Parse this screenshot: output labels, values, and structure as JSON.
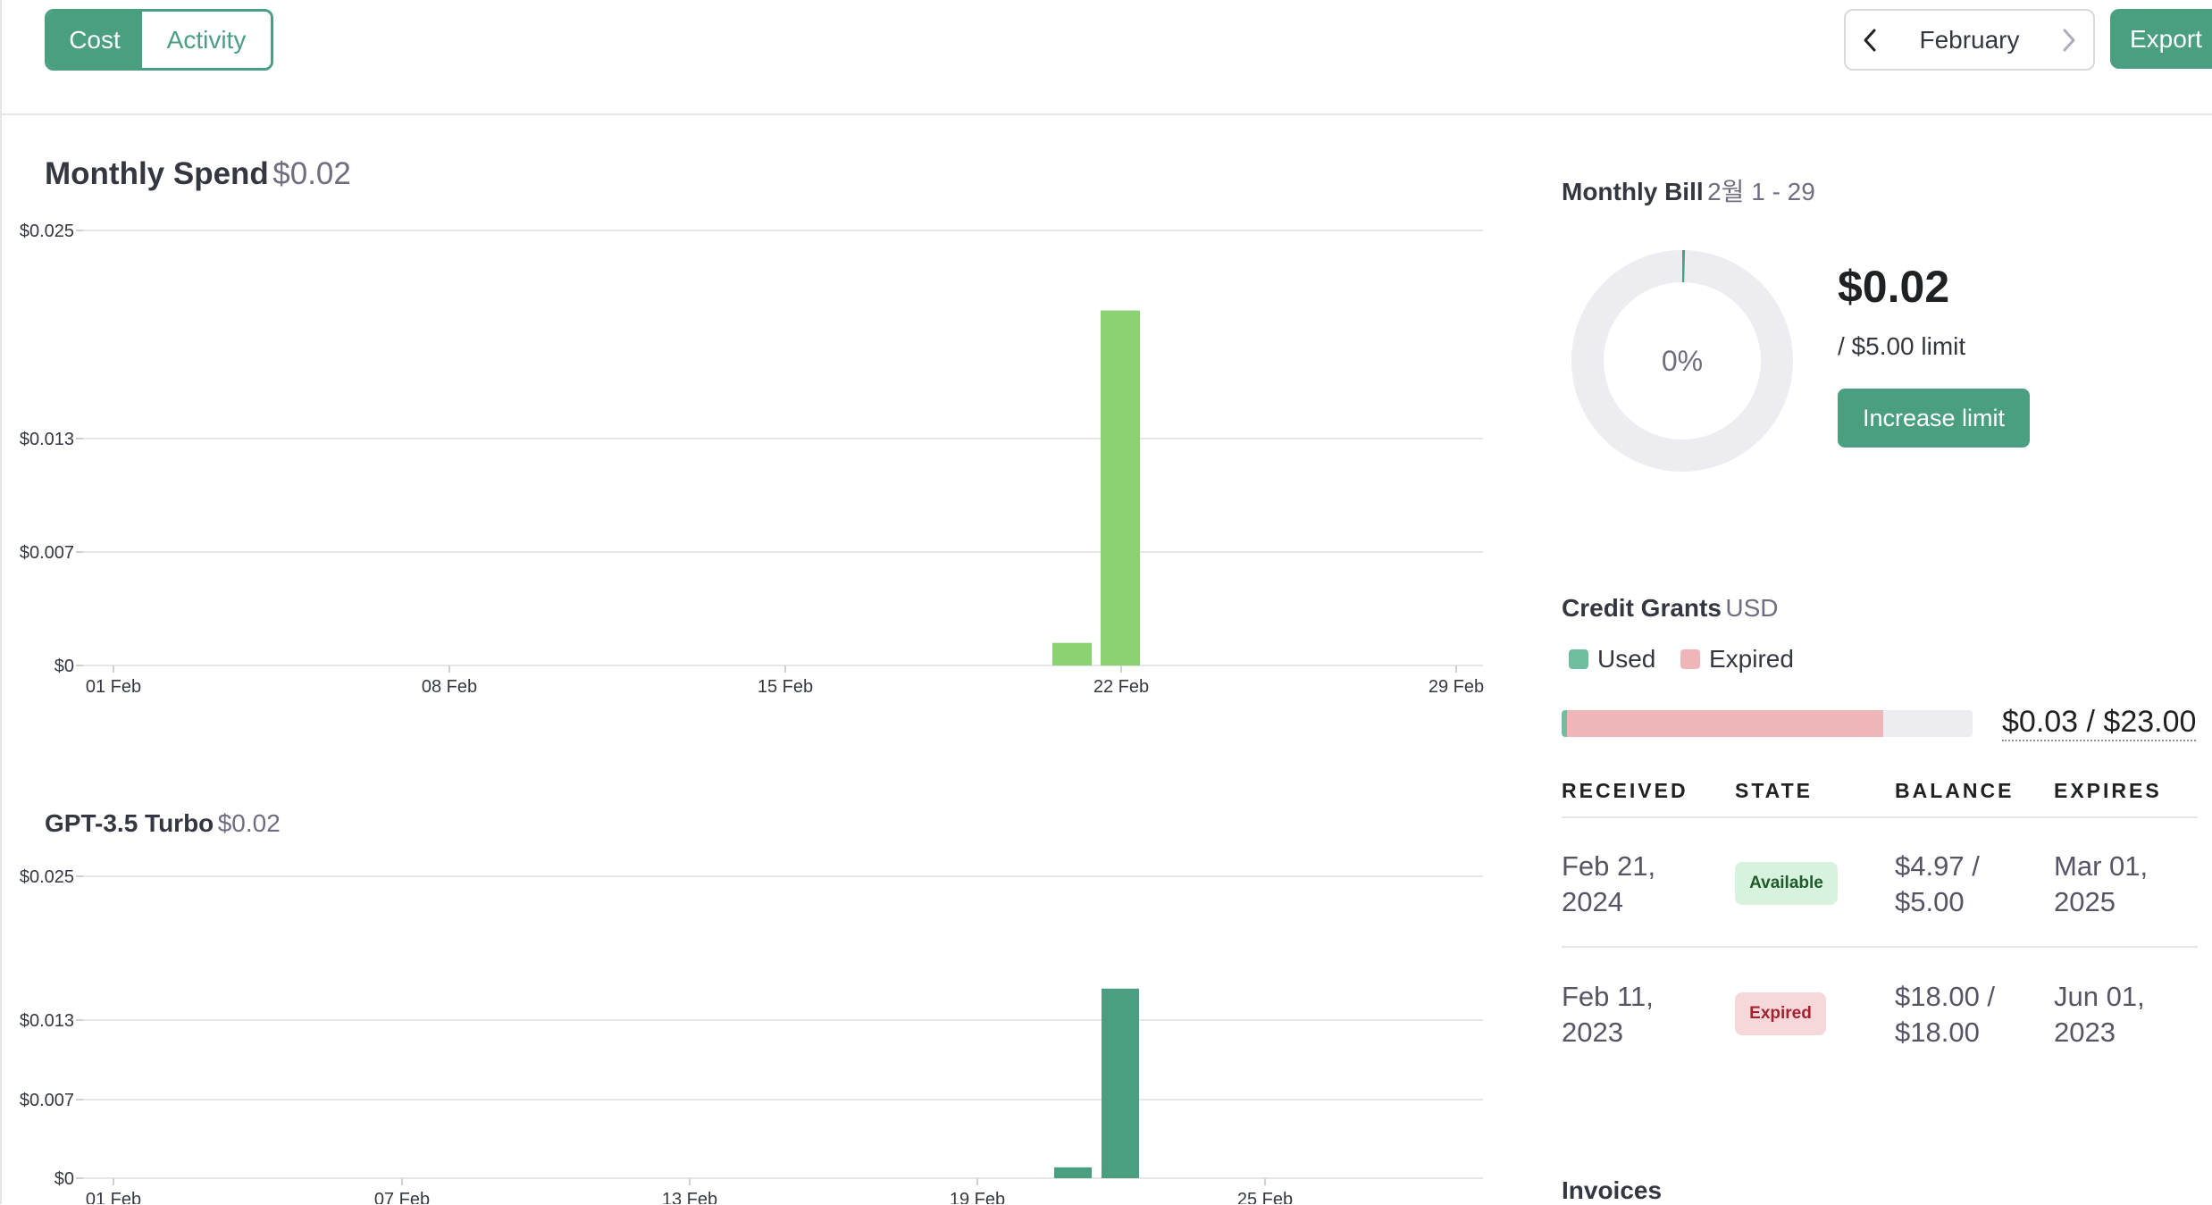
{
  "toggle": {
    "cost_label": "Cost",
    "activity_label": "Activity",
    "active": "Cost"
  },
  "month_nav": {
    "month": "February"
  },
  "export_label": "Export",
  "monthly_spend": {
    "title": "Monthly Spend",
    "amount": "$0.02"
  },
  "model_spend": {
    "title": "GPT-3.5 Turbo",
    "amount": "$0.02"
  },
  "chart_data": [
    {
      "type": "bar",
      "title": "Monthly Spend $0.02",
      "ylim": [
        0,
        0.025
      ],
      "y_ticks": [
        "$0.025",
        "$0.013",
        "$0.007",
        "$0"
      ],
      "x_ticks": [
        "01 Feb",
        "08 Feb",
        "15 Feb",
        "22 Feb",
        "29 Feb"
      ],
      "categories": [
        "21 Feb",
        "22 Feb"
      ],
      "values": [
        0.0013,
        0.0204
      ],
      "color": "#8ad272",
      "grid": true
    },
    {
      "type": "bar",
      "title": "GPT-3.5 Turbo $0.02",
      "ylim": [
        0,
        0.025
      ],
      "y_ticks": [
        "$0.025",
        "$0.013",
        "$0.007",
        "$0"
      ],
      "x_ticks": [
        "01 Feb",
        "07 Feb",
        "13 Feb",
        "19 Feb",
        "25 Feb"
      ],
      "categories": [
        "21 Feb",
        "22 Feb"
      ],
      "values": [
        0.0009,
        0.0157
      ],
      "color": "#4a9f80",
      "grid": true
    }
  ],
  "monthly_bill": {
    "title": "Monthly Bill",
    "range": "2월 1 - 29",
    "percent_label": "0%",
    "percent": 0.4,
    "amount": "$0.02",
    "limit": "/ $5.00 limit",
    "button": "Increase limit"
  },
  "credit_grants": {
    "title": "Credit Grants",
    "currency": "USD",
    "legend": [
      {
        "label": "Used",
        "color": "#6fbf9e"
      },
      {
        "label": "Expired",
        "color": "#efb6b9"
      }
    ],
    "used_fraction": 0.0013,
    "expired_fraction": 0.7826,
    "total": "$0.03 / $23.00",
    "columns": [
      "RECEIVED",
      "STATE",
      "BALANCE",
      "EXPIRES"
    ],
    "rows": [
      {
        "received_1": "Feb 21,",
        "received_2": "2024",
        "state": "Available",
        "balance_1": "$4.97 /",
        "balance_2": "$5.00",
        "expires_1": "Mar 01,",
        "expires_2": "2025"
      },
      {
        "received_1": "Feb 11,",
        "received_2": "2023",
        "state": "Expired",
        "balance_1": "$18.00 /",
        "balance_2": "$18.00",
        "expires_1": "Jun 01,",
        "expires_2": "2023"
      }
    ]
  },
  "invoices": {
    "title": "Invoices"
  },
  "icons": {
    "prev": "chevron-left-icon",
    "next": "chevron-right-icon"
  }
}
